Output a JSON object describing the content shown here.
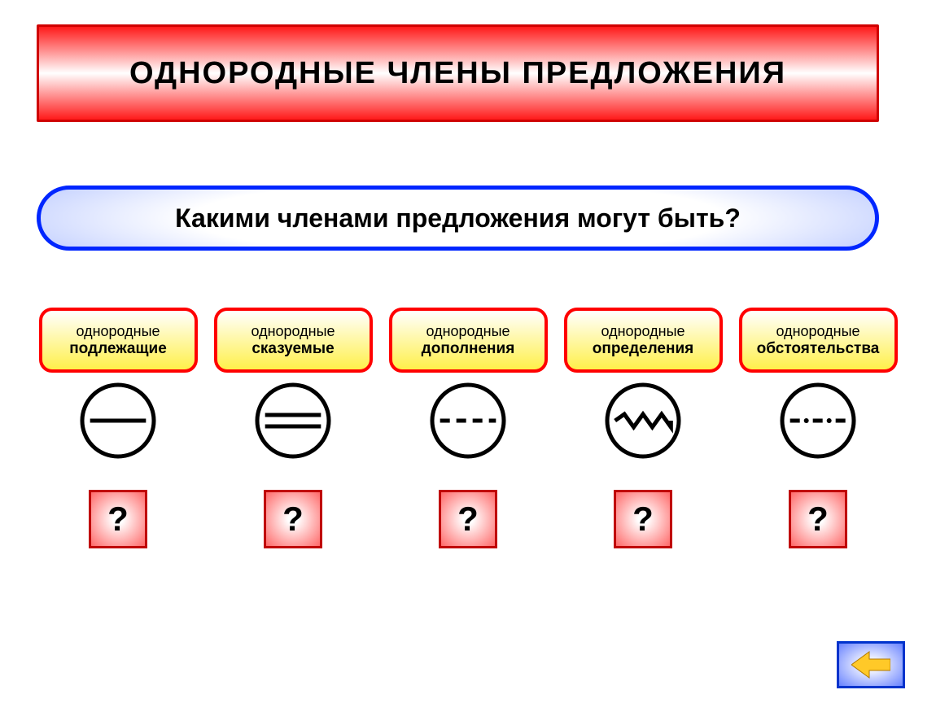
{
  "title": {
    "text": "ОДНОРОДНЫЕ  ЧЛЕНЫ  ПРЕДЛОЖЕНИЯ",
    "fontsize": 38,
    "color": "#000000",
    "border_color": "#d00000",
    "gradient_top": "#ff1a1a",
    "gradient_mid": "#ffffff",
    "gradient_bot": "#ff1a1a"
  },
  "subtitle": {
    "text": "Какими членами предложения могут быть?",
    "fontsize": 32,
    "color": "#000000",
    "border_color": "#0026ff",
    "bg_inner": "#ffffff",
    "bg_outer": "#8aa3ff"
  },
  "chip_style": {
    "border_color": "#ff0000",
    "bg_top": "#ffffff",
    "bg_bot": "#fff04a",
    "text_color": "#000000"
  },
  "symbol_style": {
    "stroke": "#000000",
    "stroke_width": 5,
    "radius": 44
  },
  "items": [
    {
      "line1": "однородные",
      "line2": "подлежащие",
      "symbol": "subject"
    },
    {
      "line1": "однородные",
      "line2": "сказуемые",
      "symbol": "predicate"
    },
    {
      "line1": "однородные",
      "line2": "дополнения",
      "symbol": "object"
    },
    {
      "line1": "однородные",
      "line2": "определения",
      "symbol": "attribute"
    },
    {
      "line1": "однородные",
      "line2": "обстоятельства",
      "symbol": "adverbial"
    }
  ],
  "qmark": {
    "text": "?",
    "fontsize": 42,
    "color": "#000000",
    "border_color": "#c00000",
    "grad_edge": "#ff3a3a",
    "grad_center": "#ffffff"
  },
  "nav": {
    "border_color": "#0033cc",
    "grad_edge": "#3a5cff",
    "grad_center": "#ffffff",
    "arrow_color": "#ffc928"
  }
}
